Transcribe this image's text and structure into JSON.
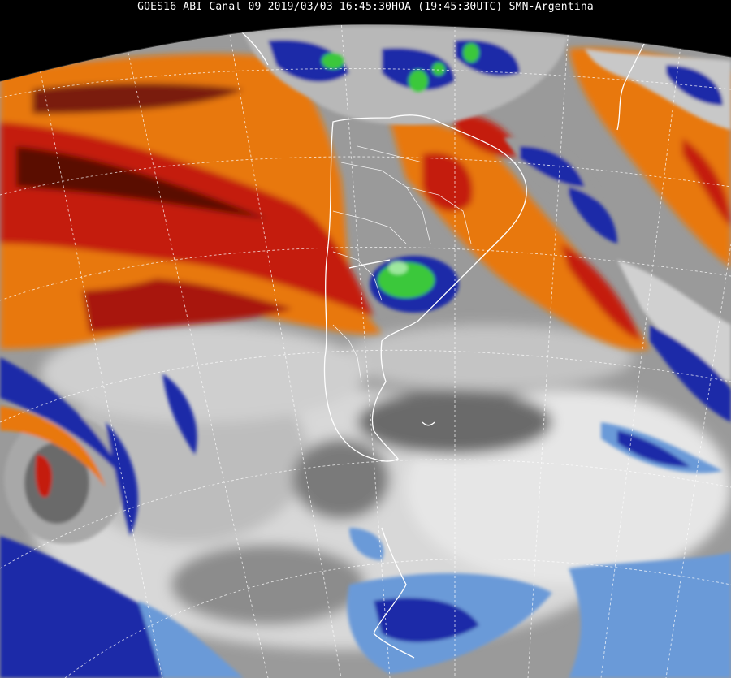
{
  "header": {
    "caption": "GOES16 ABI Canal 09 2019/03/03 16:45:30HOA (19:45:30UTC) SMN-Argentina"
  },
  "image": {
    "description_layers": [
      "earth-disk",
      "water-vapor-field",
      "coastlines-borders",
      "lat-lon-grid"
    ]
  },
  "colors": {
    "space": "#000000",
    "moist_white": "#e8e8e8",
    "mid_grey": "#8a8a8a",
    "dark_grey": "#4a4a4a",
    "dry_orange": "#e8780c",
    "dry_red": "#c41a0a",
    "very_dry_darkred": "#5a0a05",
    "cold_blue": "#1a2aa8",
    "light_blue": "#6a9ad8",
    "green": "#3ac83a",
    "coast_line": "#ffffff",
    "grid_line": "#ffffff"
  }
}
